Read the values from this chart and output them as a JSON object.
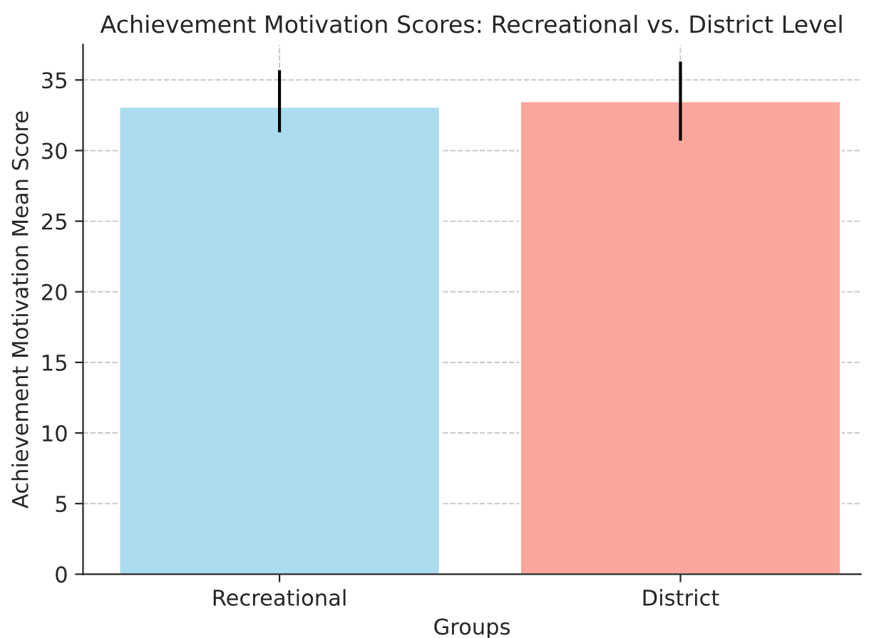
{
  "chart_data": {
    "type": "bar",
    "title": "Achievement Motivation Scores: Recreational vs. District Level",
    "xlabel": "Groups",
    "ylabel": "Achievement Motivation Mean Score",
    "categories": [
      "Recreational",
      "District"
    ],
    "values": [
      33.1,
      33.5
    ],
    "colors": [
      "#abdcef",
      "#f9a69c"
    ],
    "errors": [
      [
        31.3,
        35.7
      ],
      [
        30.7,
        36.3
      ]
    ],
    "ylim": [
      0,
      37.5
    ],
    "yticks": [
      0,
      5,
      10,
      15,
      20,
      25,
      30,
      35
    ],
    "grid": true
  }
}
